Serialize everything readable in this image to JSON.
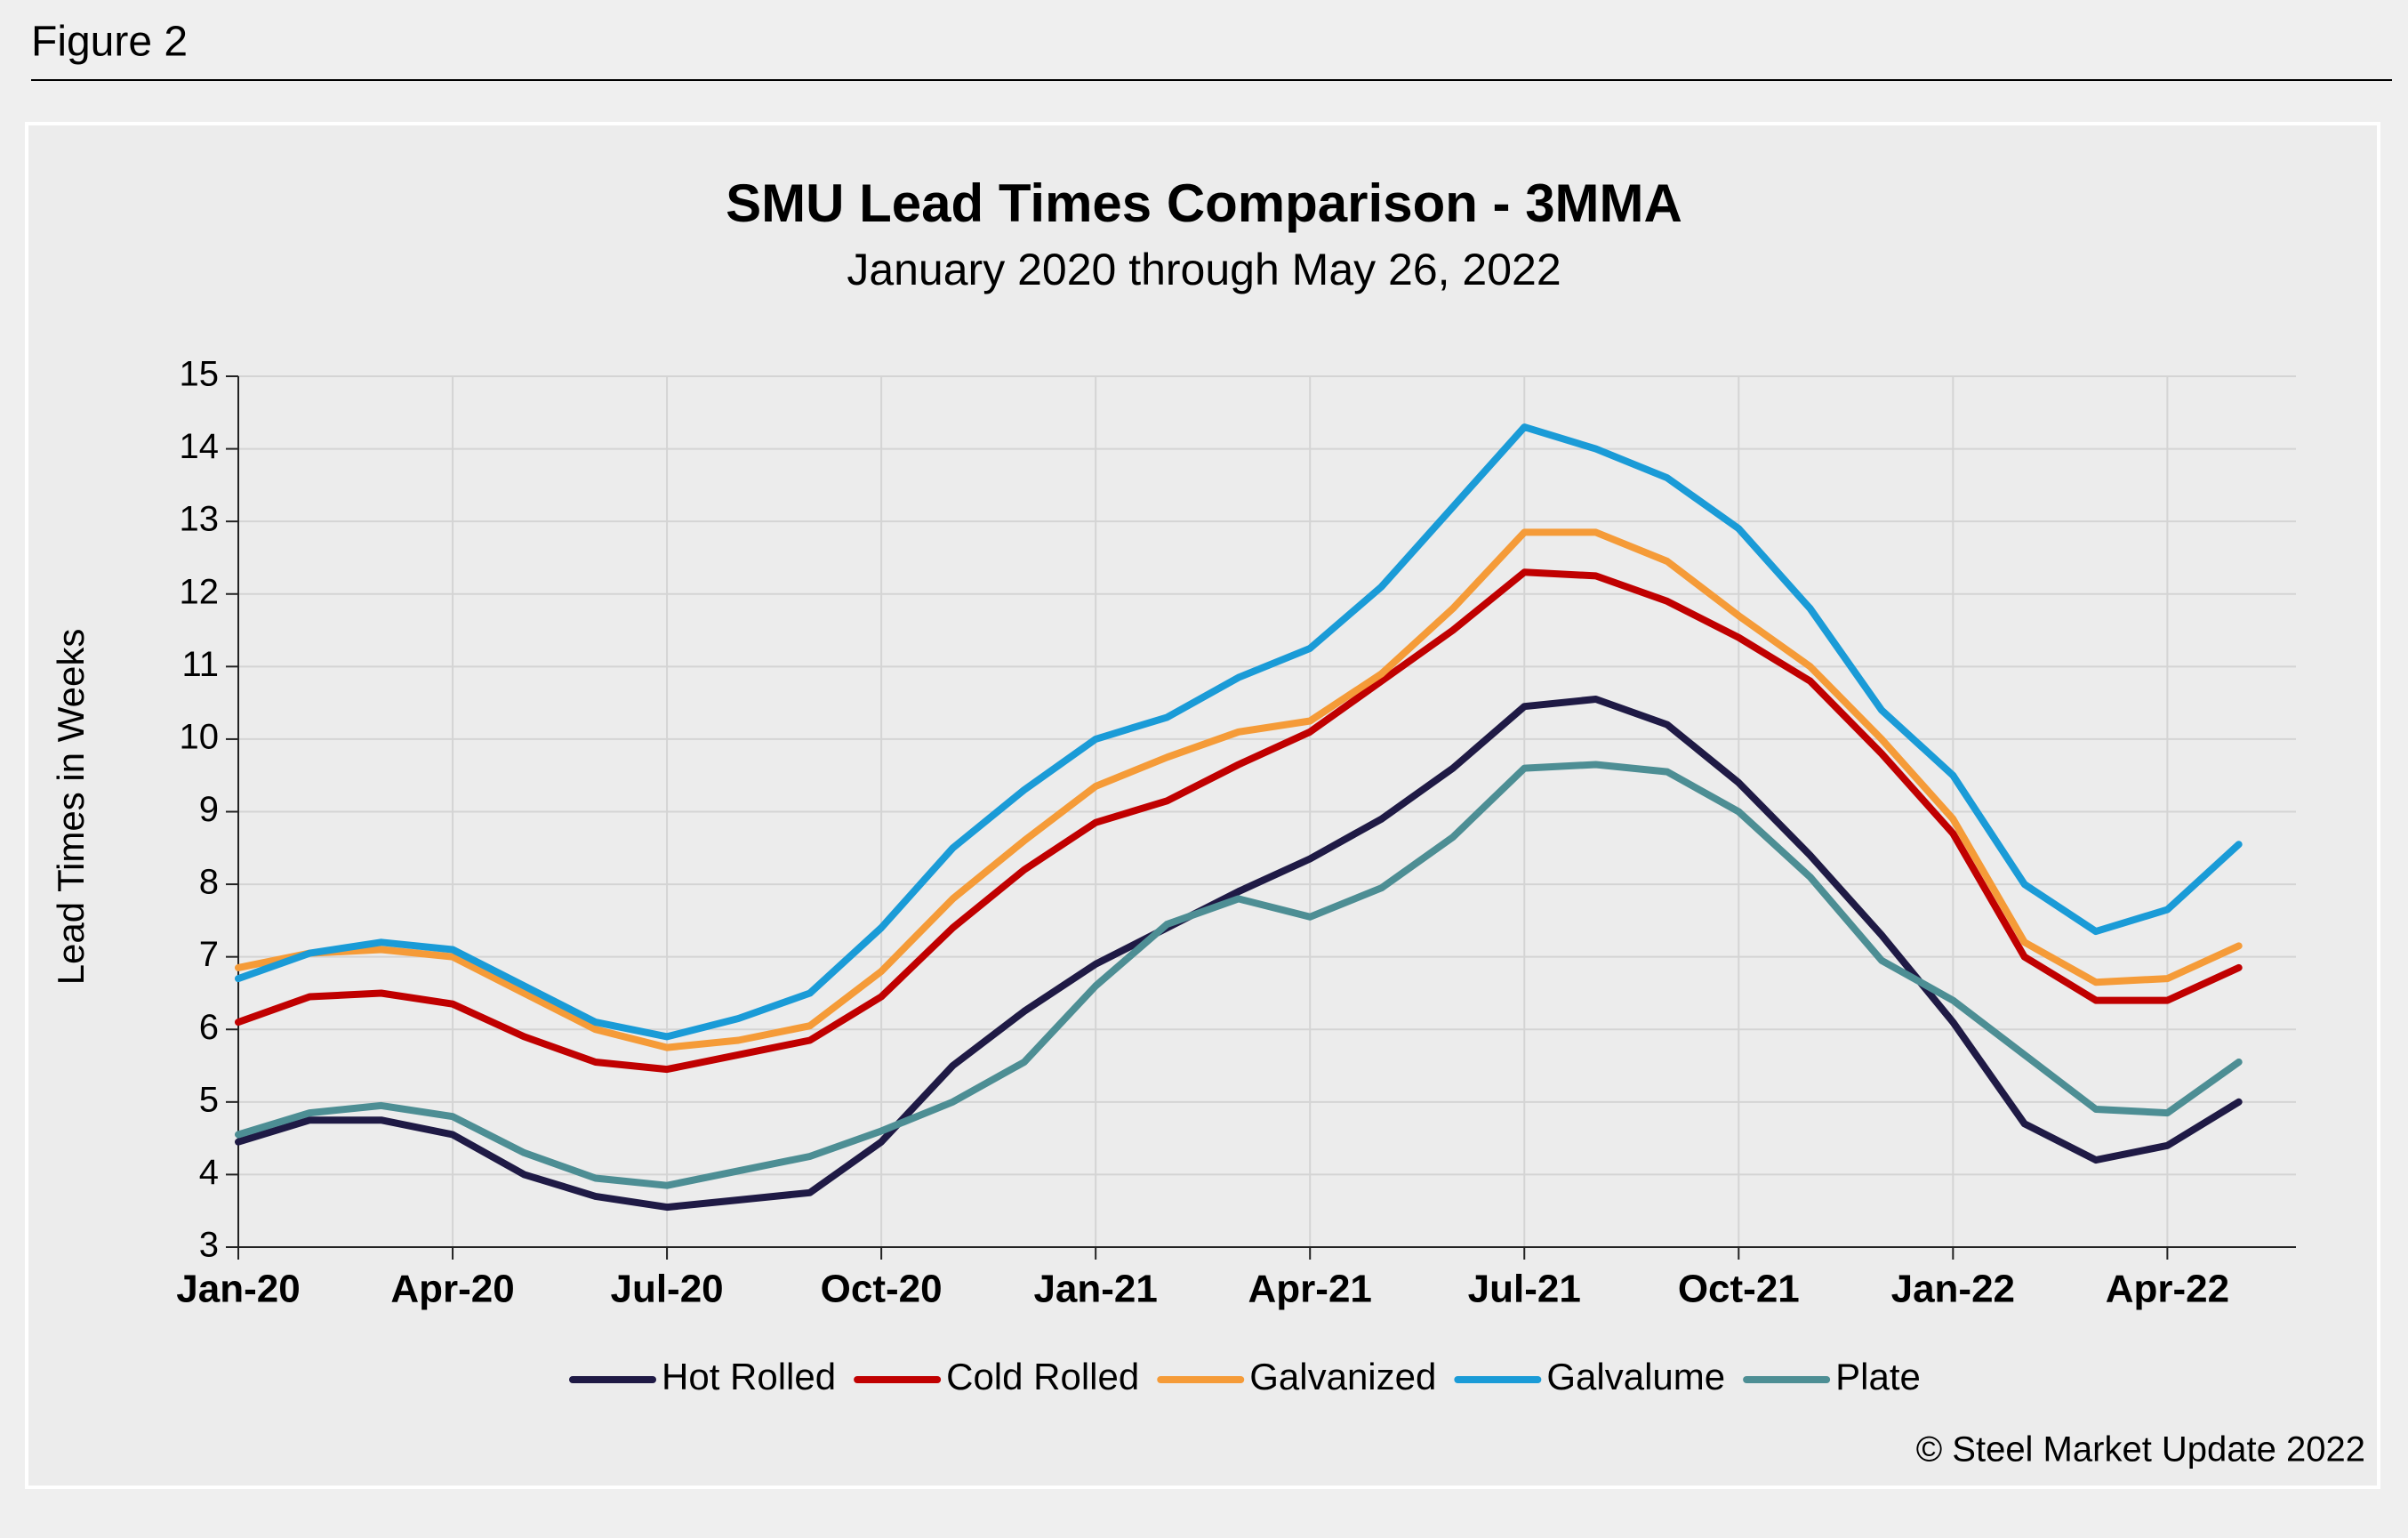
{
  "figure_label": "Figure 2",
  "copyright": "© Steel Market Update 2022",
  "chart_data": {
    "type": "line",
    "title": "SMU Lead Times Comparison - 3MMA",
    "subtitle": "January 2020 through May 26, 2022",
    "y_label": "Lead Times in Weeks",
    "categories": [
      "Jan-20",
      null,
      null,
      "Apr-20",
      null,
      null,
      "Jul-20",
      null,
      null,
      "Oct-20",
      null,
      null,
      "Jan-21",
      null,
      null,
      "Apr-21",
      null,
      null,
      "Jul-21",
      null,
      null,
      "Oct-21",
      null,
      null,
      "Jan-22",
      null,
      null,
      "Apr-22",
      null
    ],
    "series": [
      {
        "name": "Hot Rolled",
        "color": "#1f1a45",
        "values": [
          4.45,
          4.75,
          4.75,
          4.55,
          4.0,
          3.7,
          3.55,
          3.65,
          3.75,
          4.45,
          5.5,
          6.25,
          6.9,
          7.4,
          7.9,
          8.35,
          8.9,
          9.6,
          10.45,
          10.55,
          10.2,
          9.4,
          8.4,
          7.3,
          6.1,
          4.7,
          4.2,
          4.4,
          5.0
        ]
      },
      {
        "name": "Cold Rolled",
        "color": "#c00000",
        "values": [
          6.1,
          6.45,
          6.5,
          6.35,
          5.9,
          5.55,
          5.45,
          5.65,
          5.85,
          6.45,
          7.4,
          8.2,
          8.85,
          9.15,
          9.65,
          10.1,
          10.8,
          11.5,
          12.3,
          12.25,
          11.9,
          11.4,
          10.8,
          9.8,
          8.7,
          7.0,
          6.4,
          6.4,
          6.85
        ]
      },
      {
        "name": "Galvanized",
        "color": "#f59b38",
        "values": [
          6.85,
          7.05,
          7.1,
          7.0,
          6.5,
          6.0,
          5.75,
          5.85,
          6.05,
          6.8,
          7.8,
          8.6,
          9.35,
          9.75,
          10.1,
          10.25,
          10.9,
          11.8,
          12.85,
          12.85,
          12.45,
          11.7,
          11.0,
          10.0,
          8.9,
          7.2,
          6.65,
          6.7,
          7.15
        ]
      },
      {
        "name": "Galvalume",
        "color": "#1a9bd7",
        "values": [
          6.7,
          7.05,
          7.2,
          7.1,
          6.6,
          6.1,
          5.9,
          6.15,
          6.5,
          7.4,
          8.5,
          9.3,
          10.0,
          10.3,
          10.85,
          11.25,
          12.1,
          13.2,
          14.3,
          14.0,
          13.6,
          12.9,
          11.8,
          10.4,
          9.5,
          8.0,
          7.35,
          7.65,
          8.55
        ]
      },
      {
        "name": "Plate",
        "color": "#4d8e94",
        "values": [
          4.55,
          4.85,
          4.95,
          4.8,
          4.3,
          3.95,
          3.85,
          4.05,
          4.25,
          4.6,
          5.0,
          5.55,
          6.6,
          7.45,
          7.8,
          7.55,
          7.95,
          8.65,
          9.6,
          9.65,
          9.55,
          9.0,
          8.1,
          6.95,
          6.4,
          5.65,
          4.9,
          4.85,
          5.55
        ]
      }
    ],
    "ylim": [
      3,
      15
    ],
    "yticks": [
      3,
      4,
      5,
      6,
      7,
      8,
      9,
      10,
      11,
      12,
      13,
      14,
      15
    ],
    "grid": true,
    "legend": "bottom"
  }
}
